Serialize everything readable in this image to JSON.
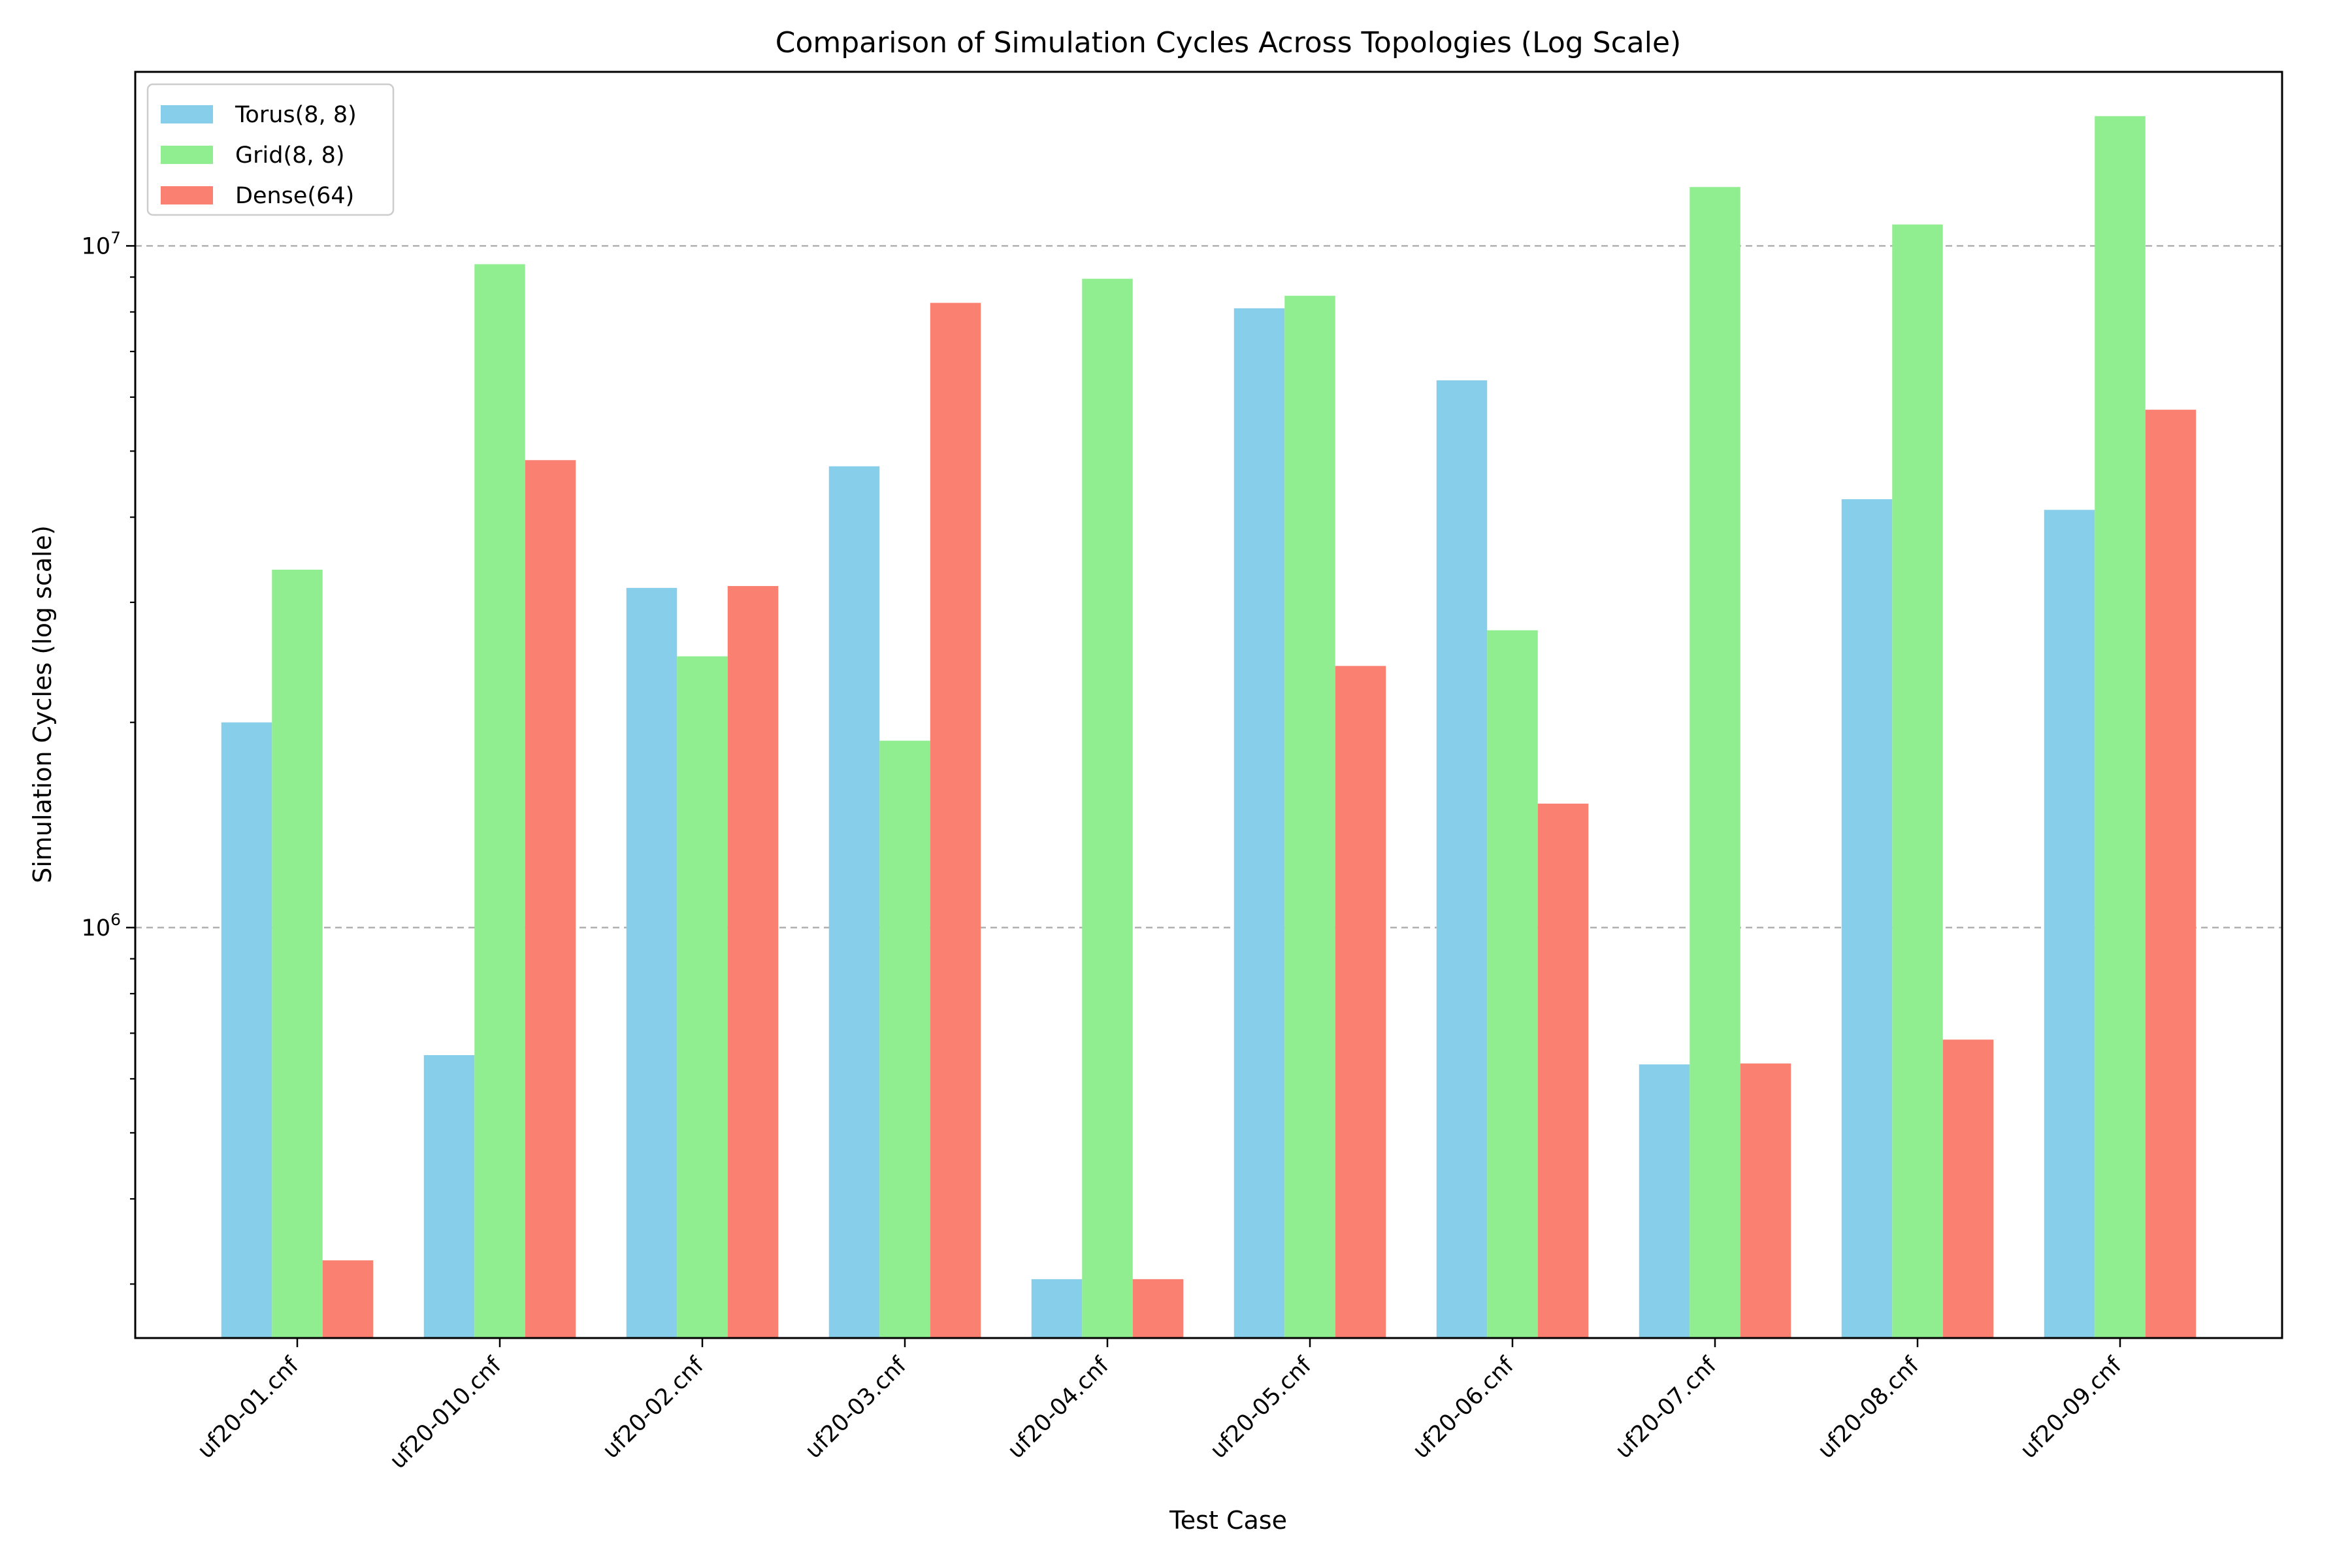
{
  "chart_data": {
    "type": "bar",
    "title": "Comparison of Simulation Cycles Across Topologies (Log Scale)",
    "xlabel": "Test Case",
    "ylabel": "Simulation Cycles (log scale)",
    "yscale": "log",
    "ylim": [
      250000,
      18000000
    ],
    "y_major_ticks": [
      {
        "value": 1000000,
        "base": "10",
        "exp": "6"
      },
      {
        "value": 10000000,
        "base": "10",
        "exp": "7"
      }
    ],
    "grid": "y-major-dashed",
    "legend_position": "upper-left",
    "categories": [
      "uf20-01.cnf",
      "uf20-010.cnf",
      "uf20-02.cnf",
      "uf20-03.cnf",
      "uf20-04.cnf",
      "uf20-05.cnf",
      "uf20-06.cnf",
      "uf20-07.cnf",
      "uf20-08.cnf",
      "uf20-09.cnf"
    ],
    "series": [
      {
        "name": "Torus(8, 8)",
        "color": "#87ceeb",
        "values": [
          2000000,
          650000,
          3150000,
          4750000,
          305000,
          8100000,
          6350000,
          630000,
          4250000,
          4100000
        ]
      },
      {
        "name": "Grid(8, 8)",
        "color": "#90ee90",
        "values": [
          3350000,
          9400000,
          2500000,
          1880000,
          8950000,
          8450000,
          2730000,
          12200000,
          10750000,
          15500000
        ]
      },
      {
        "name": "Dense(64)",
        "color": "#fa8072",
        "values": [
          325000,
          4850000,
          3170000,
          8250000,
          305000,
          2420000,
          1520000,
          632000,
          685000,
          5750000
        ]
      }
    ]
  }
}
